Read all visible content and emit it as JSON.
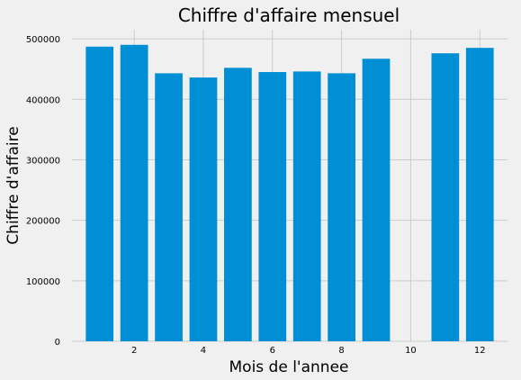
{
  "chart_data": {
    "type": "bar",
    "title": "Chiffre d'affaire mensuel",
    "xlabel": "Mois de l'annee",
    "ylabel": "Chiffre d'affaire",
    "x": [
      1,
      2,
      3,
      4,
      5,
      6,
      7,
      8,
      9,
      11,
      12
    ],
    "values": [
      487000,
      490000,
      443000,
      436000,
      452000,
      445000,
      446000,
      443000,
      467000,
      476000,
      485000
    ],
    "xlim": [
      0.2,
      12.8
    ],
    "ylim": [
      0,
      515000
    ],
    "xticks": [
      2,
      4,
      6,
      8,
      10,
      12
    ],
    "xtick_labels": [
      "2",
      "4",
      "6",
      "8",
      "10",
      "12"
    ],
    "yticks": [
      0,
      100000,
      200000,
      300000,
      400000,
      500000
    ],
    "ytick_labels": [
      "0",
      "100000",
      "200000",
      "300000",
      "400000",
      "500000"
    ],
    "grid": true,
    "bar_color": "#008fd5",
    "background": "#f0f0f0"
  }
}
